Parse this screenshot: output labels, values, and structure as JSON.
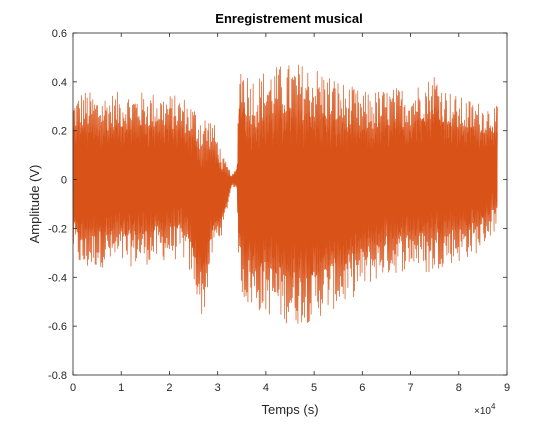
{
  "chart_data": {
    "type": "line",
    "title": "Enregistrement musical",
    "xlabel": "Temps (s)",
    "ylabel": "Amplitude (V)",
    "xlim": [
      0,
      90000
    ],
    "ylim": [
      -0.8,
      0.6
    ],
    "x_exponent_label": "×10",
    "x_exponent_power": "4",
    "x_ticks": [
      {
        "value": 0,
        "label": "0"
      },
      {
        "value": 10000,
        "label": "1"
      },
      {
        "value": 20000,
        "label": "2"
      },
      {
        "value": 30000,
        "label": "3"
      },
      {
        "value": 40000,
        "label": "4"
      },
      {
        "value": 50000,
        "label": "5"
      },
      {
        "value": 60000,
        "label": "6"
      },
      {
        "value": 70000,
        "label": "7"
      },
      {
        "value": 80000,
        "label": "8"
      },
      {
        "value": 90000,
        "label": "9"
      }
    ],
    "y_ticks": [
      {
        "value": 0.6,
        "label": "0.6"
      },
      {
        "value": 0.4,
        "label": "0.4"
      },
      {
        "value": 0.2,
        "label": "0.2"
      },
      {
        "value": 0,
        "label": "0"
      },
      {
        "value": -0.2,
        "label": "-0.2"
      },
      {
        "value": -0.4,
        "label": "-0.4"
      },
      {
        "value": -0.6,
        "label": "-0.6"
      },
      {
        "value": -0.8,
        "label": "-0.8"
      }
    ],
    "grid": false,
    "box": true,
    "series": [
      {
        "color": "#D95319",
        "x_start": 0,
        "x_end": 88000,
        "envelope": {
          "x": [
            0,
            2000,
            5000,
            10000,
            15000,
            20000,
            23000,
            25000,
            27000,
            29000,
            31000,
            33000,
            34000,
            34500,
            36000,
            38000,
            40000,
            43000,
            46000,
            50000,
            53000,
            56000,
            60000,
            64000,
            68000,
            70000,
            72000,
            74000,
            75000,
            77000,
            80000,
            84000,
            88000
          ],
          "upper": [
            0.33,
            0.37,
            0.35,
            0.36,
            0.36,
            0.35,
            0.34,
            0.31,
            0.28,
            0.25,
            0.1,
            0.02,
            0.05,
            0.52,
            0.45,
            0.42,
            0.46,
            0.47,
            0.48,
            0.47,
            0.44,
            0.4,
            0.36,
            0.37,
            0.38,
            0.38,
            0.4,
            0.42,
            0.45,
            0.38,
            0.34,
            0.32,
            0.3
          ],
          "lower": [
            -0.3,
            -0.39,
            -0.36,
            -0.36,
            -0.35,
            -0.33,
            -0.33,
            -0.43,
            -0.58,
            -0.3,
            -0.22,
            -0.02,
            -0.05,
            -0.45,
            -0.52,
            -0.54,
            -0.55,
            -0.58,
            -0.6,
            -0.58,
            -0.54,
            -0.52,
            -0.45,
            -0.4,
            -0.38,
            -0.36,
            -0.37,
            -0.4,
            -0.38,
            -0.35,
            -0.34,
            -0.3,
            -0.2
          ]
        }
      }
    ]
  }
}
